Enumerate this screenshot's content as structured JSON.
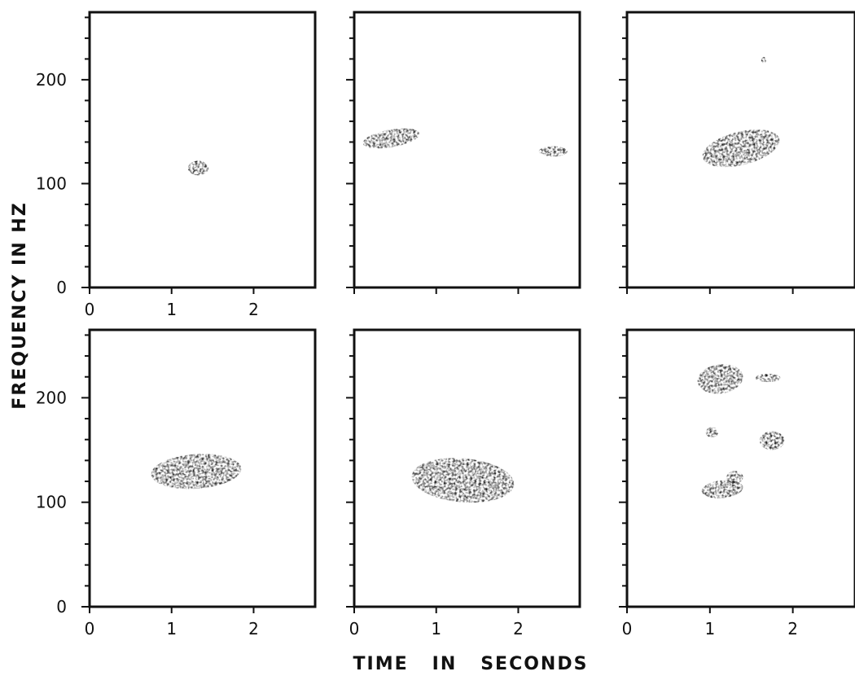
{
  "figure": {
    "xlabel": "TIME   IN   SECONDS",
    "ylabel": "FREQUENCY IN HZ"
  },
  "chart_data": [
    {
      "type": "scatter",
      "x_ticks": [
        "0",
        "1",
        "2"
      ],
      "y_ticks": [
        "0",
        "100",
        "200"
      ],
      "xlim": [
        0,
        2.75
      ],
      "ylim": [
        0,
        265
      ],
      "blobs": [
        {
          "x": [
            1.2,
            1.45
          ],
          "y": [
            108,
            122
          ],
          "angle": 0
        }
      ]
    },
    {
      "type": "scatter",
      "x_ticks": [],
      "y_ticks": [],
      "xlim": [
        0,
        2.75
      ],
      "ylim": [
        0,
        265
      ],
      "blobs": [
        {
          "x": [
            0.1,
            0.8
          ],
          "y": [
            135,
            152
          ],
          "angle": -10
        },
        {
          "x": [
            2.25,
            2.6
          ],
          "y": [
            126,
            136
          ],
          "angle": 0
        }
      ]
    },
    {
      "type": "scatter",
      "x_ticks": [],
      "y_ticks": [],
      "xlim": [
        0,
        2.75
      ],
      "ylim": [
        0,
        265
      ],
      "blobs": [
        {
          "x": [
            0.9,
            1.85
          ],
          "y": [
            118,
            150
          ],
          "angle": -14
        },
        {
          "x": [
            1.62,
            1.68
          ],
          "y": [
            216,
            222
          ],
          "angle": 0
        }
      ]
    },
    {
      "type": "scatter",
      "x_ticks": [
        "0",
        "1",
        "2"
      ],
      "y_ticks": [
        "0",
        "100",
        "200"
      ],
      "xlim": [
        0,
        2.75
      ],
      "ylim": [
        0,
        265
      ],
      "blobs": [
        {
          "x": [
            0.75,
            1.85
          ],
          "y": [
            113,
            146
          ],
          "angle": -4
        }
      ]
    },
    {
      "type": "scatter",
      "x_ticks": [
        "0",
        "1",
        "2"
      ],
      "y_ticks": [],
      "xlim": [
        0,
        2.75
      ],
      "ylim": [
        0,
        265
      ],
      "blobs": [
        {
          "x": [
            0.7,
            1.95
          ],
          "y": [
            100,
            142
          ],
          "angle": 5
        }
      ]
    },
    {
      "type": "scatter",
      "x_ticks": [
        "0",
        "1",
        "2"
      ],
      "y_ticks": [],
      "xlim": [
        0,
        2.75
      ],
      "ylim": [
        0,
        265
      ],
      "blobs": [
        {
          "x": [
            0.85,
            1.4
          ],
          "y": [
            204,
            232
          ],
          "angle": -8
        },
        {
          "x": [
            1.55,
            1.85
          ],
          "y": [
            215,
            223
          ],
          "angle": 0
        },
        {
          "x": [
            1.6,
            1.9
          ],
          "y": [
            150,
            168
          ],
          "angle": 0
        },
        {
          "x": [
            0.9,
            1.4
          ],
          "y": [
            104,
            121
          ],
          "angle": -6
        },
        {
          "x": [
            1.2,
            1.4
          ],
          "y": [
            118,
            130
          ],
          "angle": 0
        },
        {
          "x": [
            0.95,
            1.1
          ],
          "y": [
            162,
            172
          ],
          "angle": 0
        }
      ]
    }
  ]
}
